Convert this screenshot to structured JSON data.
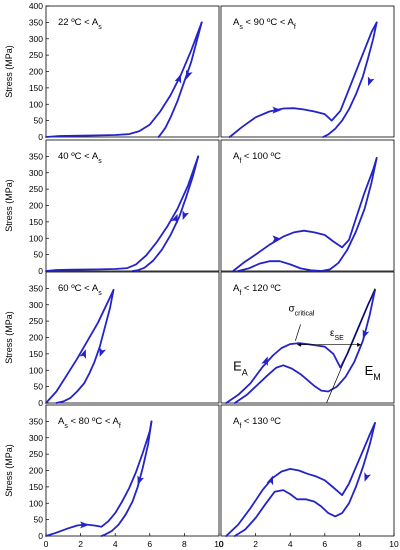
{
  "chart_data": [
    {
      "type": "line",
      "panel": "row1-left",
      "label_parts": [
        {
          "t": "22 ºC < A"
        },
        {
          "t": "s",
          "sub": true
        }
      ],
      "xlim": [
        0,
        10
      ],
      "ylim": [
        0,
        400
      ],
      "yticks": [
        0,
        50,
        100,
        150,
        200,
        250,
        300,
        350,
        400
      ],
      "ylabel": "Stress (MPa)",
      "series": [
        {
          "x": [
            0,
            0.8,
            2,
            3,
            4,
            4.8,
            5.4,
            6,
            6.6,
            7.2,
            7.8,
            8.4,
            9.0
          ],
          "y": [
            0,
            3,
            4,
            5,
            6,
            9,
            18,
            38,
            78,
            128,
            190,
            265,
            350
          ]
        },
        {
          "x": [
            9.0,
            8.7,
            8.4,
            8.0,
            7.6,
            7.2,
            6.9,
            6.6,
            6.5
          ],
          "y": [
            350,
            290,
            230,
            170,
            110,
            60,
            28,
            6,
            0
          ]
        }
      ],
      "arrows": [
        {
          "x": 7.7,
          "y": 178,
          "dir": "up"
        },
        {
          "x": 8.2,
          "y": 190,
          "dir": "down"
        }
      ]
    },
    {
      "type": "line",
      "panel": "row1-right",
      "label_parts": [
        {
          "t": "A"
        },
        {
          "t": "s",
          "sub": true
        },
        {
          "t": " < 90 ºC < A"
        },
        {
          "t": "f",
          "sub": true
        }
      ],
      "xlim": [
        0,
        10
      ],
      "ylim": [
        0,
        400
      ],
      "series": [
        {
          "x": [
            0.5,
            1.2,
            2.0,
            2.8,
            3.6,
            4.2,
            4.8,
            5.4,
            6.0,
            6.4,
            6.9,
            7.5,
            8.1,
            8.7,
            9.0
          ],
          "y": [
            0,
            30,
            60,
            78,
            87,
            88,
            84,
            78,
            70,
            50,
            80,
            160,
            240,
            320,
            350
          ]
        },
        {
          "x": [
            9.0,
            8.8,
            8.5,
            8.2,
            7.8,
            7.4,
            7.0,
            6.6,
            6.2,
            5.9
          ],
          "y": [
            350,
            300,
            240,
            185,
            130,
            85,
            50,
            25,
            8,
            0
          ]
        }
      ],
      "arrows": [
        {
          "x": 3.2,
          "y": 82,
          "dir": "right"
        },
        {
          "x": 8.6,
          "y": 170,
          "dir": "down"
        }
      ]
    },
    {
      "type": "line",
      "panel": "row2-left",
      "label_parts": [
        {
          "t": "40 ºC < A"
        },
        {
          "t": "s",
          "sub": true
        }
      ],
      "xlim": [
        0,
        10
      ],
      "ylim": [
        0,
        400
      ],
      "yticks": [
        0,
        50,
        100,
        150,
        200,
        250,
        300,
        350
      ],
      "ylabel": "Stress (MPa)",
      "series": [
        {
          "x": [
            0,
            0.6,
            1.5,
            3,
            4,
            4.7,
            5.2,
            5.8,
            6.4,
            7.0,
            7.6,
            8.2,
            8.6,
            8.8
          ],
          "y": [
            0,
            3,
            4,
            5,
            6,
            9,
            20,
            48,
            88,
            135,
            190,
            260,
            320,
            350
          ]
        },
        {
          "x": [
            8.8,
            8.5,
            8.1,
            7.7,
            7.2,
            6.7,
            6.2,
            5.7,
            5.3,
            5.0
          ],
          "y": [
            350,
            290,
            225,
            165,
            110,
            65,
            32,
            10,
            2,
            0
          ]
        }
      ],
      "arrows": [
        {
          "x": 7.5,
          "y": 160,
          "dir": "up"
        },
        {
          "x": 8.0,
          "y": 170,
          "dir": "down"
        }
      ]
    },
    {
      "type": "line",
      "panel": "row2-right",
      "label_parts": [
        {
          "t": "A"
        },
        {
          "t": "f",
          "sub": true
        },
        {
          "t": " < 100 ºC"
        }
      ],
      "xlim": [
        0,
        10
      ],
      "ylim": [
        0,
        400
      ],
      "series": [
        {
          "x": [
            0.7,
            1.3,
            2.0,
            2.8,
            3.6,
            4.2,
            4.8,
            5.4,
            6.0,
            6.5,
            7.0,
            7.4,
            7.8,
            8.3,
            8.8,
            9.0
          ],
          "y": [
            0,
            25,
            50,
            80,
            105,
            118,
            123,
            118,
            110,
            90,
            72,
            95,
            160,
            240,
            310,
            345
          ]
        },
        {
          "x": [
            9.0,
            8.7,
            8.3,
            7.8,
            7.3,
            6.8,
            6.3,
            5.8,
            5.2,
            4.6,
            4.0,
            3.4,
            2.8,
            2.2,
            1.6,
            1.0
          ],
          "y": [
            345,
            270,
            190,
            120,
            65,
            25,
            5,
            0,
            2,
            8,
            20,
            30,
            30,
            22,
            8,
            0
          ]
        }
      ],
      "arrows": [
        {
          "x": 3.2,
          "y": 98,
          "dir": "right"
        }
      ]
    },
    {
      "type": "line",
      "panel": "row3-left",
      "label_parts": [
        {
          "t": "60 ºC < A"
        },
        {
          "t": "s",
          "sub": true
        }
      ],
      "xlim": [
        0,
        10
      ],
      "ylim": [
        0,
        400
      ],
      "yticks": [
        0,
        50,
        100,
        150,
        200,
        250,
        300,
        350
      ],
      "ylabel": "Stress (MPa)",
      "series": [
        {
          "x": [
            0,
            0.6,
            1.2,
            1.8,
            2.4,
            3.0,
            3.5,
            3.9
          ],
          "y": [
            0,
            35,
            85,
            135,
            190,
            245,
            300,
            345
          ]
        },
        {
          "x": [
            3.9,
            3.7,
            3.4,
            3.1,
            2.8,
            2.5,
            2.2,
            1.8,
            1.4,
            1.0,
            0.6
          ],
          "y": [
            345,
            290,
            230,
            170,
            125,
            90,
            60,
            35,
            15,
            5,
            0
          ]
        }
      ],
      "arrows": [
        {
          "x": 2.2,
          "y": 150,
          "dir": "up"
        },
        {
          "x": 3.2,
          "y": 155,
          "dir": "down"
        }
      ]
    },
    {
      "type": "line",
      "panel": "row3-right",
      "label_parts": [
        {
          "t": "A"
        },
        {
          "t": "f",
          "sub": true
        },
        {
          "t": " < 120 ºC"
        }
      ],
      "xlim": [
        0,
        10
      ],
      "ylim": [
        0,
        400
      ],
      "series": [
        {
          "x": [
            0.3,
            1.0,
            1.7,
            2.4,
            3.0,
            3.5,
            4.0,
            4.5,
            5.0,
            5.5,
            6.0,
            6.5,
            6.9,
            7.3,
            7.7,
            8.1,
            8.5,
            8.9
          ],
          "y": [
            0,
            25,
            60,
            110,
            145,
            168,
            180,
            183,
            180,
            176,
            172,
            150,
            108,
            150,
            200,
            250,
            300,
            345
          ]
        },
        {
          "x": [
            8.9,
            8.6,
            8.2,
            7.7,
            7.2,
            6.7,
            6.2,
            5.8,
            5.4,
            5.0,
            4.6,
            4.1,
            3.6,
            3.2,
            2.7,
            2.1,
            1.5,
            0.8
          ],
          "y": [
            345,
            270,
            190,
            125,
            80,
            50,
            35,
            38,
            52,
            70,
            88,
            105,
            115,
            108,
            85,
            55,
            25,
            0
          ]
        }
      ],
      "arrows": [
        {
          "x": 2.6,
          "y": 128,
          "dir": "up"
        },
        {
          "x": 8.3,
          "y": 210,
          "dir": "down"
        }
      ],
      "annotations": {
        "sigma": {
          "main": "σ",
          "sub": "critical"
        },
        "eps": {
          "main": "ε",
          "sub": "SE"
        },
        "ea": {
          "main": "E",
          "sub": "A"
        },
        "em": {
          "main": "E",
          "sub": "M"
        }
      }
    },
    {
      "type": "line",
      "panel": "row4-left",
      "label_parts": [
        {
          "t": "A"
        },
        {
          "t": "s",
          "sub": true
        },
        {
          "t": " < 80 ºC < A"
        },
        {
          "t": "f",
          "sub": true
        }
      ],
      "xlim": [
        0,
        10
      ],
      "ylim": [
        0,
        400
      ],
      "yticks": [
        0,
        50,
        100,
        150,
        200,
        250,
        300,
        350
      ],
      "ylabel": "Stress (MPa)",
      "xticks": [
        0,
        2,
        4,
        6,
        8,
        10
      ],
      "xlabel": "Strain (%)",
      "series": [
        {
          "x": [
            0,
            0.6,
            1.2,
            1.8,
            2.3,
            2.8,
            3.2,
            3.6,
            4.0,
            4.4,
            4.8,
            5.2,
            5.6,
            6.0,
            6.1
          ],
          "y": [
            0,
            10,
            22,
            32,
            35,
            32,
            28,
            45,
            70,
            105,
            145,
            195,
            255,
            320,
            350
          ]
        },
        {
          "x": [
            6.1,
            5.9,
            5.6,
            5.3,
            5.0,
            4.6,
            4.2,
            3.8,
            3.4,
            3.2
          ],
          "y": [
            350,
            280,
            210,
            150,
            105,
            65,
            35,
            15,
            4,
            0
          ]
        }
      ],
      "arrows": [
        {
          "x": 2.2,
          "y": 34,
          "dir": "right"
        },
        {
          "x": 5.4,
          "y": 170,
          "dir": "down"
        }
      ]
    },
    {
      "type": "line",
      "panel": "row4-right",
      "label_parts": [
        {
          "t": "A"
        },
        {
          "t": "f",
          "sub": true
        },
        {
          "t": " < 130 ºC"
        }
      ],
      "xlim": [
        0,
        10
      ],
      "ylim": [
        0,
        400
      ],
      "xticks": [
        0,
        2,
        4,
        6,
        8,
        10
      ],
      "xlabel": "Strain (%)",
      "series": [
        {
          "x": [
            0.3,
            1.0,
            1.7,
            2.4,
            3.0,
            3.5,
            4.0,
            4.5,
            5.0,
            5.5,
            6.0,
            6.5,
            7.0,
            7.4,
            7.8,
            8.2,
            8.6,
            8.9
          ],
          "y": [
            0,
            35,
            85,
            140,
            178,
            197,
            205,
            200,
            190,
            182,
            170,
            148,
            125,
            160,
            210,
            260,
            310,
            345
          ]
        },
        {
          "x": [
            8.9,
            8.6,
            8.2,
            7.8,
            7.4,
            7.0,
            6.6,
            6.2,
            5.8,
            5.4,
            4.9,
            4.4,
            4.0,
            3.6,
            3.1,
            2.6,
            2.0,
            1.4,
            0.8
          ],
          "y": [
            345,
            280,
            210,
            150,
            100,
            70,
            60,
            70,
            90,
            105,
            112,
            112,
            128,
            140,
            135,
            100,
            55,
            20,
            0
          ]
        }
      ],
      "arrows": [
        {
          "x": 2.9,
          "y": 170,
          "dir": "up"
        },
        {
          "x": 8.4,
          "y": 180,
          "dir": "down"
        }
      ]
    }
  ]
}
